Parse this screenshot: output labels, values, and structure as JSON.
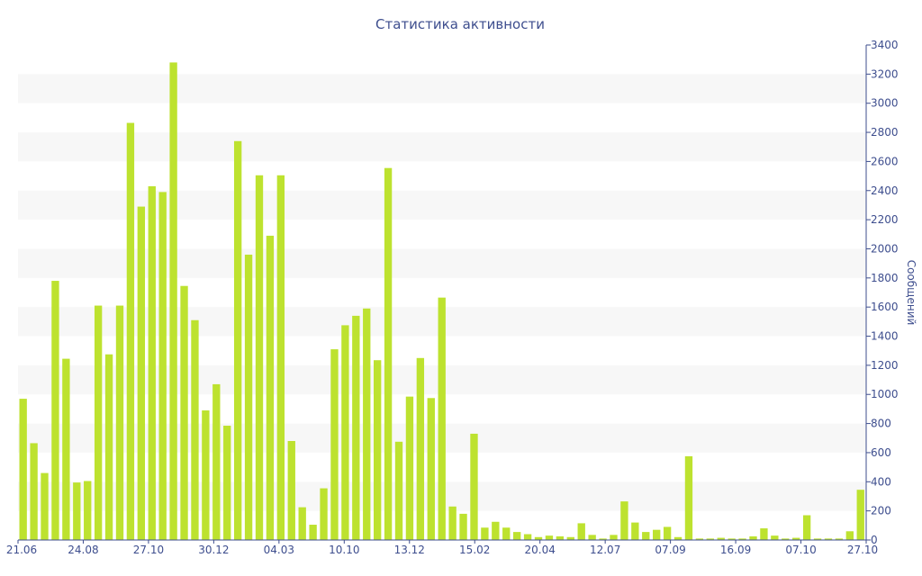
{
  "chart_data": {
    "type": "bar",
    "title": "Статистика активности",
    "ylabel": "Сообщений",
    "ylim": [
      0,
      3400
    ],
    "ytick_step": 200,
    "y_axis_side": "right",
    "grid": "alternating horizontal bands",
    "bar_color": "#bde22f",
    "text_color": "#3e4e8e",
    "x_tick_labels": [
      "21.06",
      "24.08",
      "27.10",
      "30.12",
      "04.03",
      "10.10",
      "13.12",
      "15.02",
      "20.04",
      "12.07",
      "07.09",
      "16.09",
      "07.10",
      "27.10"
    ],
    "values": [
      970,
      665,
      460,
      1780,
      1245,
      395,
      405,
      1610,
      1275,
      1610,
      2865,
      2290,
      2430,
      2390,
      3280,
      1745,
      1510,
      890,
      1070,
      785,
      2740,
      1960,
      2505,
      2090,
      2505,
      680,
      225,
      105,
      355,
      1310,
      1475,
      1540,
      1590,
      1235,
      2555,
      675,
      985,
      1250,
      975,
      1665,
      230,
      180,
      730,
      85,
      125,
      85,
      55,
      40,
      20,
      30,
      25,
      20,
      115,
      35,
      10,
      35,
      265,
      120,
      55,
      70,
      90,
      20,
      575,
      10,
      10,
      15,
      10,
      10,
      25,
      80,
      30,
      10,
      15,
      170,
      10,
      10,
      10,
      60,
      345
    ]
  }
}
